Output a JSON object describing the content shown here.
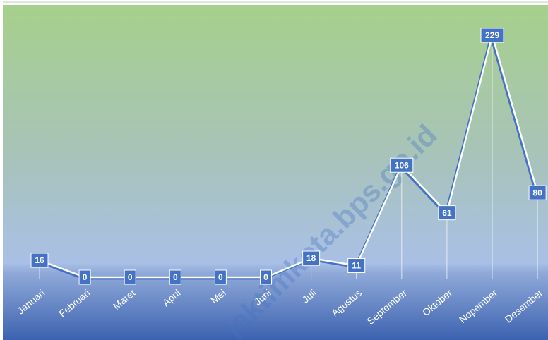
{
  "chart_data": {
    "type": "line",
    "categories": [
      "Januari",
      "Februari",
      "Maret",
      "April",
      "Mei",
      "Juni",
      "Juli",
      "Agustus",
      "September",
      "Oktober",
      "Nopember",
      "Desember"
    ],
    "values": [
      16,
      0,
      0,
      0,
      0,
      0,
      18,
      11,
      106,
      61,
      229,
      80
    ],
    "color": "#ffffff",
    "label_color": "#4472c4",
    "watermark": "jaktimkota.bps.go.id"
  }
}
